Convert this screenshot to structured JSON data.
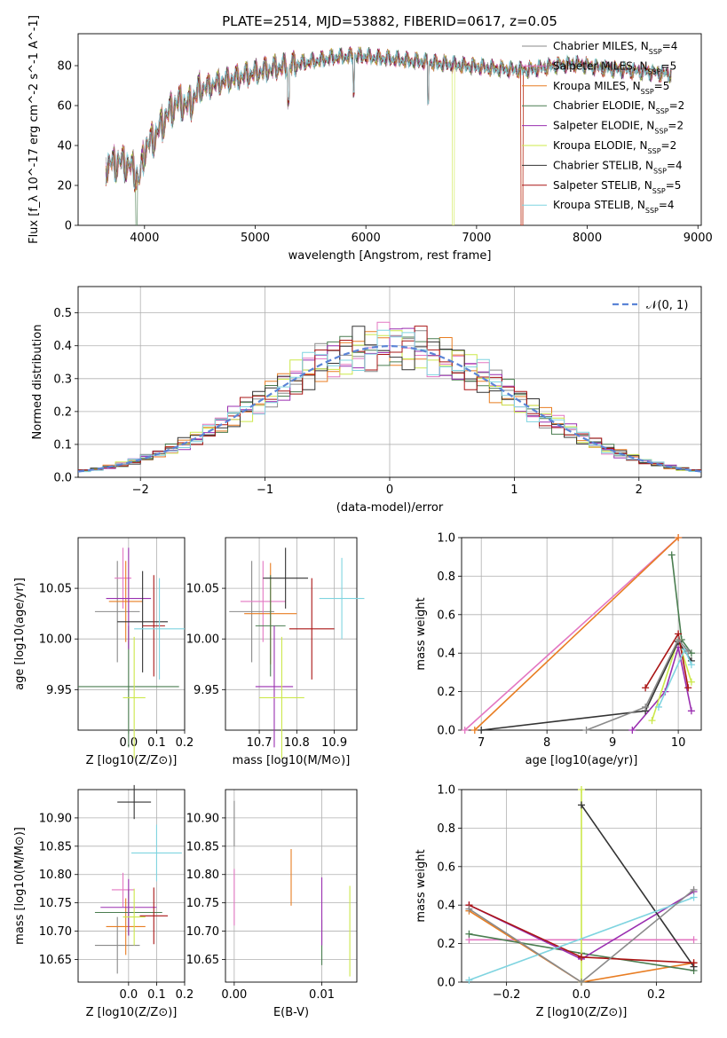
{
  "figure": {
    "title": "PLATE=2514, MJD=53882, FIBERID=0617, z=0.05"
  },
  "series_styles": [
    {
      "name": "Chabrier MILES",
      "n_ssp": "4",
      "color": "#8a8a8a"
    },
    {
      "name": "Salpeter MILES",
      "n_ssp": "5",
      "color": "#e377c2"
    },
    {
      "name": "Kroupa MILES",
      "n_ssp": "5",
      "color": "#e87d22"
    },
    {
      "name": "Chabrier ELODIE",
      "n_ssp": "2",
      "color": "#4a7d50"
    },
    {
      "name": "Salpeter ELODIE",
      "n_ssp": "2",
      "color": "#9a2fb0"
    },
    {
      "name": "Kroupa ELODIE",
      "n_ssp": "2",
      "color": "#cce84a"
    },
    {
      "name": "Chabrier STELIB",
      "n_ssp": "4",
      "color": "#333333"
    },
    {
      "name": "Salpeter STELIB",
      "n_ssp": "5",
      "color": "#aa1515"
    },
    {
      "name": "Kroupa STELIB",
      "n_ssp": "4",
      "color": "#7fd4e0"
    }
  ],
  "chart_data": [
    {
      "id": "spectrum",
      "type": "line",
      "title": "PLATE=2514, MJD=53882, FIBERID=0617, z=0.05",
      "xlabel": "wavelength [Angstrom, rest frame]",
      "ylabel": "Flux [f_λ 10^-17 erg cm^-2 s^-1 A^-1]",
      "xlim": [
        3400,
        9030
      ],
      "ylim": [
        0,
        96
      ],
      "xticks": [
        "4000",
        "5000",
        "6000",
        "7000",
        "8000",
        "9000"
      ],
      "yticks": [
        "0",
        "20",
        "40",
        "60",
        "80"
      ],
      "grid": false,
      "legend": "top-right",
      "x": [
        3650,
        3800,
        3900,
        3950,
        4000,
        4100,
        4200,
        4300,
        4400,
        4500,
        4700,
        4900,
        5100,
        5300,
        5500,
        5700,
        5900,
        6100,
        6300,
        6500,
        6700,
        6900,
        7100,
        7300,
        7500,
        7700,
        7900,
        8100,
        8300,
        8500,
        8700
      ],
      "values": [
        30,
        32,
        28,
        22,
        38,
        45,
        55,
        62,
        60,
        68,
        72,
        75,
        78,
        80,
        82,
        84,
        85,
        84,
        83,
        82,
        81,
        80,
        79,
        78,
        78,
        80,
        81,
        79,
        78,
        77,
        76
      ]
    },
    {
      "id": "residuals",
      "type": "line",
      "xlabel": "(data-model)/error",
      "ylabel": "Normed distribution",
      "xlim": [
        -2.5,
        2.5
      ],
      "ylim": [
        0,
        0.58
      ],
      "xticks": [
        "−2",
        "−1",
        "0",
        "1",
        "2"
      ],
      "yticks": [
        "0.0",
        "0.1",
        "0.2",
        "0.3",
        "0.4",
        "0.5"
      ],
      "grid": true,
      "legend": "top-right",
      "legend_label": "𝒩(0, 1)",
      "reference_curve": "normal(0,1)"
    },
    {
      "id": "age-vs-Z",
      "type": "scatter",
      "xlabel": "Z [log10(Z/Z⊙)]",
      "ylabel": "age [log10(age/yr)]",
      "xlim": [
        -0.18,
        0.2
      ],
      "ylim": [
        9.91,
        10.1
      ],
      "xticks": [
        "0.0",
        "0.1",
        "0.2"
      ],
      "yticks": [
        "9.95",
        "10.00",
        "10.05"
      ],
      "grid": true,
      "points": [
        {
          "x": -0.04,
          "y": 10.027,
          "xerr": 0.08,
          "yerr": 0.05
        },
        {
          "x": -0.02,
          "y": 10.06,
          "xerr": 0.03,
          "yerr": 0.03
        },
        {
          "x": -0.01,
          "y": 10.037,
          "xerr": 0.06,
          "yerr": 0.04
        },
        {
          "x": 0.0,
          "y": 9.953,
          "xerr": 0.18,
          "yerr": 0.06
        },
        {
          "x": 0.0,
          "y": 10.04,
          "xerr": 0.08,
          "yerr": 0.05
        },
        {
          "x": 0.02,
          "y": 9.942,
          "xerr": 0.04,
          "yerr": 0.06
        },
        {
          "x": 0.05,
          "y": 10.017,
          "xerr": 0.09,
          "yerr": 0.05
        },
        {
          "x": 0.09,
          "y": 10.013,
          "xerr": 0.04,
          "yerr": 0.05
        },
        {
          "x": 0.11,
          "y": 10.01,
          "xerr": 0.09,
          "yerr": 0.05
        }
      ]
    },
    {
      "id": "age-vs-mass",
      "type": "scatter",
      "xlabel": "mass [log10(M/M⊙)]",
      "ylabel": "",
      "xlim": [
        10.61,
        10.96
      ],
      "ylim": [
        9.91,
        10.1
      ],
      "xticks": [
        "10.7",
        "10.8",
        "10.9"
      ],
      "yticks": [
        "9.95",
        "10.00",
        "10.05"
      ],
      "grid": true,
      "points": [
        {
          "x": 10.68,
          "y": 10.027,
          "xerr": 0.06,
          "yerr": 0.05
        },
        {
          "x": 10.71,
          "y": 10.037,
          "xerr": 0.06,
          "yerr": 0.04
        },
        {
          "x": 10.73,
          "y": 10.025,
          "xerr": 0.07,
          "yerr": 0.05
        },
        {
          "x": 10.73,
          "y": 10.013,
          "xerr": 0.04,
          "yerr": 0.05
        },
        {
          "x": 10.74,
          "y": 9.953,
          "xerr": 0.05,
          "yerr": 0.06
        },
        {
          "x": 10.76,
          "y": 9.942,
          "xerr": 0.06,
          "yerr": 0.06
        },
        {
          "x": 10.77,
          "y": 10.06,
          "xerr": 0.06,
          "yerr": 0.03
        },
        {
          "x": 10.84,
          "y": 10.01,
          "xerr": 0.06,
          "yerr": 0.05
        },
        {
          "x": 10.92,
          "y": 10.04,
          "xerr": 0.06,
          "yerr": 0.04
        }
      ]
    },
    {
      "id": "weight-vs-age",
      "type": "line",
      "xlabel": "age [log10(age/yr)]",
      "ylabel": "mass weight",
      "xlim": [
        6.7,
        10.35
      ],
      "ylim": [
        0,
        1.0
      ],
      "xticks": [
        "7",
        "8",
        "9",
        "10"
      ],
      "yticks": [
        "0.0",
        "0.2",
        "0.4",
        "0.6",
        "0.8",
        "1.0"
      ],
      "grid": true,
      "series": [
        {
          "x": [
            6.75,
            10.0
          ],
          "values": [
            0.0,
            1.0
          ]
        },
        {
          "x": [
            6.9,
            10.0
          ],
          "values": [
            0.0,
            1.0
          ]
        },
        {
          "x": [
            9.9,
            10.05,
            10.2
          ],
          "values": [
            0.91,
            0.47,
            0.4
          ]
        },
        {
          "x": [
            9.3,
            9.8,
            10.0,
            10.2
          ],
          "values": [
            0.0,
            0.2,
            0.43,
            0.1
          ]
        },
        {
          "x": [
            9.6,
            10.0,
            10.2
          ],
          "values": [
            0.05,
            0.47,
            0.25
          ]
        },
        {
          "x": [
            7.0,
            9.5,
            10.0,
            10.2
          ],
          "values": [
            0.0,
            0.1,
            0.46,
            0.36
          ]
        },
        {
          "x": [
            9.5,
            10.0,
            10.15
          ],
          "values": [
            0.22,
            0.5,
            0.22
          ]
        },
        {
          "x": [
            9.7,
            10.1,
            10.2
          ],
          "values": [
            0.12,
            0.42,
            0.34
          ]
        },
        {
          "x": [
            8.6,
            9.5,
            10.0,
            10.15
          ],
          "values": [
            0.0,
            0.12,
            0.47,
            0.41
          ]
        }
      ]
    },
    {
      "id": "mass-vs-Z",
      "type": "scatter",
      "xlabel": "Z [log10(Z/Z⊙)]",
      "ylabel": "mass [log10(M/M⊙)]",
      "xlim": [
        -0.18,
        0.2
      ],
      "ylim": [
        10.61,
        10.95
      ],
      "xticks": [
        "0.0",
        "0.1",
        "0.2"
      ],
      "yticks": [
        "10.65",
        "10.70",
        "10.75",
        "10.80",
        "10.85",
        "10.90"
      ],
      "grid": true,
      "points": [
        {
          "x": -0.04,
          "y": 10.675,
          "xerr": 0.08,
          "yerr": 0.05
        },
        {
          "x": -0.02,
          "y": 10.773,
          "xerr": 0.04,
          "yerr": 0.03
        },
        {
          "x": -0.01,
          "y": 10.708,
          "xerr": 0.07,
          "yerr": 0.05
        },
        {
          "x": 0.0,
          "y": 10.733,
          "xerr": 0.12,
          "yerr": 0.04
        },
        {
          "x": 0.0,
          "y": 10.742,
          "xerr": 0.1,
          "yerr": 0.05
        },
        {
          "x": 0.02,
          "y": 10.725,
          "xerr": 0.04,
          "yerr": 0.05
        },
        {
          "x": 0.02,
          "y": 10.928,
          "xerr": 0.06,
          "yerr": 0.03
        },
        {
          "x": 0.09,
          "y": 10.727,
          "xerr": 0.05,
          "yerr": 0.05
        },
        {
          "x": 0.1,
          "y": 10.838,
          "xerr": 0.09,
          "yerr": 0.05
        }
      ]
    },
    {
      "id": "mass-vs-ebv",
      "type": "scatter",
      "xlabel": "E(B-V)",
      "ylabel": "",
      "xlim": [
        -0.001,
        0.014
      ],
      "ylim": [
        10.61,
        10.95
      ],
      "xticks": [
        "0.00",
        "0.01"
      ],
      "yticks": [
        "10.65",
        "10.70",
        "10.75",
        "10.80",
        "10.85",
        "10.90"
      ],
      "grid": true,
      "points": [
        {
          "x": 0.0,
          "y": 10.89,
          "xerr": 0,
          "yerr": 0.04
        },
        {
          "x": 0.0,
          "y": 10.76,
          "xerr": 0,
          "yerr": 0.05
        },
        {
          "x": 0.0065,
          "y": 10.795,
          "xerr": 0,
          "yerr": 0.05
        },
        {
          "x": 0.01,
          "y": 10.68,
          "xerr": 0,
          "yerr": 0.04
        },
        {
          "x": 0.01,
          "y": 10.735,
          "xerr": 0,
          "yerr": 0.06
        },
        {
          "x": 0.0132,
          "y": 10.7,
          "xerr": 0,
          "yerr": 0.08
        }
      ]
    },
    {
      "id": "weight-vs-Z",
      "type": "line",
      "xlabel": "Z [log10(Z/Z⊙)]",
      "ylabel": "mass weight",
      "xlim": [
        -0.32,
        0.32
      ],
      "ylim": [
        0,
        1.0
      ],
      "xticks": [
        "−0.2",
        "0.0",
        "0.2"
      ],
      "yticks": [
        "0.0",
        "0.2",
        "0.4",
        "0.6",
        "0.8",
        "1.0"
      ],
      "grid": true,
      "series": [
        {
          "x": [
            -0.3,
            0.3
          ],
          "values": [
            0.22,
            0.22
          ]
        },
        {
          "x": [
            -0.3,
            0.0,
            0.3
          ],
          "values": [
            0.37,
            0.0,
            0.1
          ]
        },
        {
          "x": [
            -0.3,
            0.0,
            0.3
          ],
          "values": [
            0.25,
            0.15,
            0.06
          ]
        },
        {
          "x": [
            -0.3,
            0.0,
            0.3
          ],
          "values": [
            0.4,
            0.12,
            0.47
          ]
        },
        {
          "x": [
            0.0,
            0.0
          ],
          "values": [
            0.0,
            1.0
          ]
        },
        {
          "x": [
            0.0,
            0.3
          ],
          "values": [
            0.92,
            0.08
          ]
        },
        {
          "x": [
            -0.3,
            0.0,
            0.3
          ],
          "values": [
            0.4,
            0.13,
            0.1
          ]
        },
        {
          "x": [
            -0.3,
            0.3
          ],
          "values": [
            0.01,
            0.44
          ]
        },
        {
          "x": [
            -0.3,
            0.0,
            0.3
          ],
          "values": [
            0.38,
            0.0,
            0.48
          ]
        }
      ]
    }
  ]
}
